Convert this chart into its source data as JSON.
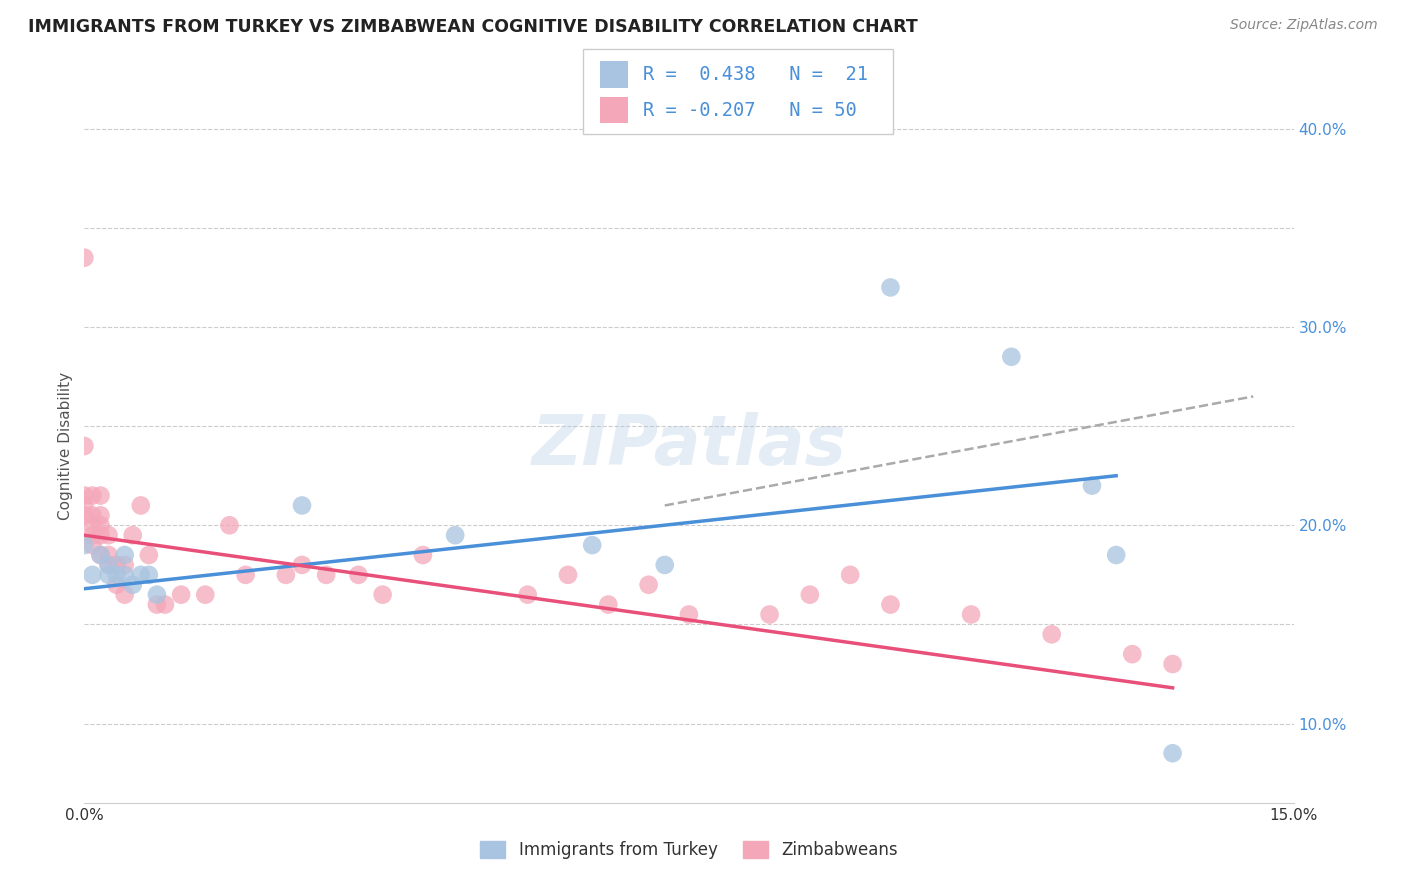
{
  "title": "IMMIGRANTS FROM TURKEY VS ZIMBABWEAN COGNITIVE DISABILITY CORRELATION CHART",
  "source": "Source: ZipAtlas.com",
  "ylabel": "Cognitive Disability",
  "xlim": [
    0.0,
    0.15
  ],
  "ylim": [
    0.06,
    0.42
  ],
  "blue_color": "#a8c4e0",
  "pink_color": "#f4a7b9",
  "blue_line_color": "#4a90d9",
  "pink_line_color": "#e8507a",
  "gray_dash_color": "#aaaaaa",
  "watermark": "ZIPatlas",
  "turkey_scatter_x": [
    0.0,
    0.001,
    0.002,
    0.003,
    0.003,
    0.004,
    0.005,
    0.005,
    0.006,
    0.007,
    0.008,
    0.009,
    0.027,
    0.046,
    0.063,
    0.072,
    0.1,
    0.115,
    0.125,
    0.128,
    0.135
  ],
  "turkey_scatter_y": [
    0.19,
    0.175,
    0.185,
    0.18,
    0.175,
    0.175,
    0.175,
    0.185,
    0.17,
    0.175,
    0.175,
    0.165,
    0.21,
    0.195,
    0.19,
    0.18,
    0.32,
    0.285,
    0.22,
    0.185,
    0.085
  ],
  "zimbabwe_scatter_x": [
    0.0,
    0.0,
    0.0,
    0.0,
    0.0,
    0.001,
    0.001,
    0.001,
    0.001,
    0.001,
    0.002,
    0.002,
    0.002,
    0.002,
    0.002,
    0.003,
    0.003,
    0.003,
    0.004,
    0.004,
    0.005,
    0.005,
    0.006,
    0.007,
    0.008,
    0.009,
    0.01,
    0.012,
    0.015,
    0.018,
    0.02,
    0.025,
    0.027,
    0.03,
    0.034,
    0.037,
    0.042,
    0.055,
    0.06,
    0.065,
    0.07,
    0.075,
    0.085,
    0.09,
    0.095,
    0.1,
    0.11,
    0.12,
    0.13,
    0.135
  ],
  "zimbabwe_scatter_y": [
    0.335,
    0.24,
    0.215,
    0.21,
    0.205,
    0.215,
    0.205,
    0.2,
    0.195,
    0.19,
    0.215,
    0.205,
    0.2,
    0.195,
    0.185,
    0.195,
    0.185,
    0.18,
    0.18,
    0.17,
    0.18,
    0.165,
    0.195,
    0.21,
    0.185,
    0.16,
    0.16,
    0.165,
    0.165,
    0.2,
    0.175,
    0.175,
    0.18,
    0.175,
    0.175,
    0.165,
    0.185,
    0.165,
    0.175,
    0.16,
    0.17,
    0.155,
    0.155,
    0.165,
    0.175,
    0.16,
    0.155,
    0.145,
    0.135,
    0.13
  ],
  "blue_trendline_x": [
    0.0,
    0.128
  ],
  "blue_trendline_y": [
    0.168,
    0.225
  ],
  "pink_trendline_x": [
    0.0,
    0.135
  ],
  "pink_trendline_y": [
    0.195,
    0.118
  ],
  "gray_trendline_x": [
    0.072,
    0.145
  ],
  "gray_trendline_y": [
    0.21,
    0.265
  ]
}
